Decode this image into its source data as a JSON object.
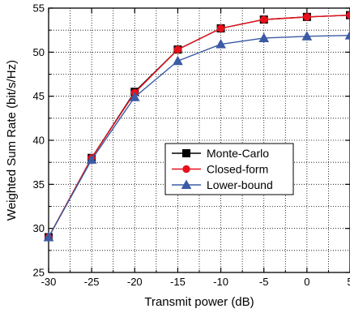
{
  "chart_data": {
    "type": "line",
    "title": "",
    "xlabel": "Transmit power (dB)",
    "ylabel": "Weighted Sum Rate (bit/s/Hz)",
    "xlim": [
      -30,
      5
    ],
    "ylim": [
      25,
      55
    ],
    "xticks": [
      -30,
      -25,
      -20,
      -15,
      -10,
      -5,
      0,
      5
    ],
    "yticks": [
      25,
      30,
      35,
      40,
      45,
      50,
      55
    ],
    "grid": true,
    "legend_position": "center-right",
    "x": [
      -30,
      -25,
      -20,
      -15,
      -10,
      -5,
      0,
      5
    ],
    "series": [
      {
        "name": "Monte-Carlo",
        "marker": "square",
        "color": "#000000",
        "values": [
          29.0,
          38.0,
          45.5,
          50.3,
          52.7,
          53.7,
          54.0,
          54.2
        ]
      },
      {
        "name": "Closed-form",
        "marker": "circle",
        "color": "#e8101a",
        "values": [
          29.0,
          38.0,
          45.4,
          50.3,
          52.7,
          53.7,
          54.0,
          54.2
        ]
      },
      {
        "name": "Lower-bound",
        "marker": "triangle",
        "color": "#3b5ba5",
        "values": [
          29.0,
          37.8,
          44.9,
          49.0,
          50.9,
          51.6,
          51.8,
          51.9
        ]
      }
    ]
  }
}
